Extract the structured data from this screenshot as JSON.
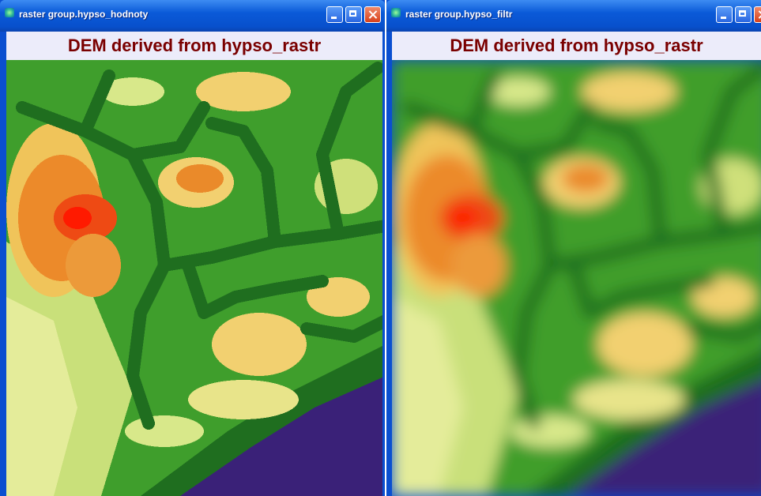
{
  "windows": [
    {
      "title": "raster group.hypso_hodnoty",
      "header": "DEM derived from hypso_rastr"
    },
    {
      "title": "raster group.hypso_filtr",
      "header": "DEM derived from hypso_rastr"
    }
  ]
}
